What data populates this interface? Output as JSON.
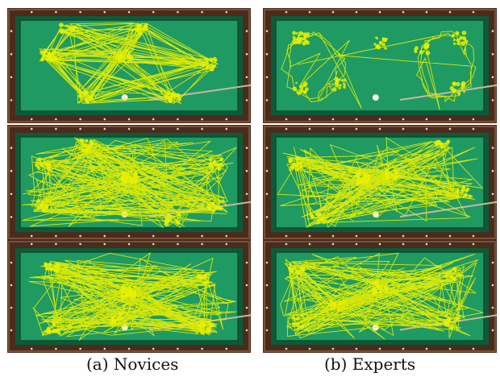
{
  "figure": {
    "columns": [
      {
        "caption": "(a) Novices",
        "panels": 3
      },
      {
        "caption": "(b) Experts",
        "panels": 3
      }
    ],
    "colors": {
      "rail": "#4a2c1d",
      "cushion": "#0e5a37",
      "felt": "#1f9a63",
      "gaze_trace": "#e8f000",
      "ball": "#f4f4ee",
      "cue": "#c9b89a"
    }
  }
}
